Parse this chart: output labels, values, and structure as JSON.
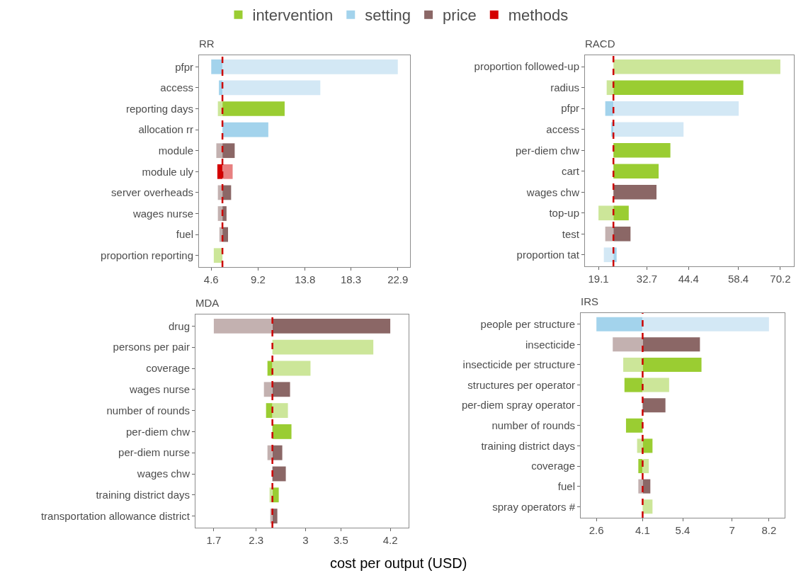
{
  "chart_data": [
    {
      "type": "bar",
      "orientation": "horizontal",
      "title": "RR",
      "legend": "top",
      "categories": [
        "pfpr",
        "access",
        "reporting days",
        "allocation rr",
        "module",
        "module uly",
        "server overheads",
        "wages nurse",
        "fuel",
        "proportion reporting"
      ],
      "series": [
        {
          "name": "intervention",
          "color": "#9acd32",
          "values": [
            null,
            null,
            6.1,
            null,
            null,
            null,
            null,
            null,
            null,
            null
          ],
          "base": [
            null,
            null,
            5.7,
            null,
            null,
            null,
            null,
            null,
            null,
            null
          ]
        },
        {
          "color": "#cce699",
          "values": [
            null,
            null,
            -0.45,
            null,
            null,
            null,
            null,
            null,
            null,
            -0.85
          ],
          "base": [
            null,
            null,
            5.7,
            null,
            null,
            null,
            null,
            null,
            null,
            5.7
          ]
        },
        {
          "name": "setting",
          "color": "#a3d3ec",
          "values": [
            -1.1,
            -0.35,
            null,
            4.5,
            null,
            null,
            null,
            null,
            null,
            null
          ],
          "base": [
            5.7,
            5.7,
            null,
            5.7,
            null,
            null,
            null,
            null,
            null,
            null
          ]
        },
        {
          "color": "#d3e8f5",
          "values": [
            17.2,
            9.6,
            null,
            null,
            null,
            null,
            null,
            null,
            null,
            null
          ],
          "base": [
            5.7,
            5.7,
            null,
            null,
            null,
            null,
            null,
            null,
            null,
            null
          ]
        },
        {
          "name": "price",
          "color": "#8b6766",
          "values": [
            null,
            null,
            null,
            null,
            1.2,
            null,
            0.85,
            0.4,
            0.55,
            null
          ],
          "base": [
            null,
            null,
            null,
            null,
            5.7,
            null,
            5.7,
            5.7,
            5.7,
            null
          ]
        },
        {
          "color": "#c3b1b0",
          "values": [
            null,
            null,
            null,
            null,
            -0.6,
            null,
            -0.45,
            -0.45,
            -0.3,
            null
          ],
          "base": [
            null,
            null,
            null,
            null,
            5.7,
            null,
            5.7,
            5.7,
            5.7,
            null
          ]
        },
        {
          "name": "methods",
          "color": "#d40000",
          "values": [
            null,
            null,
            null,
            null,
            null,
            -0.5,
            null,
            null,
            null,
            null
          ],
          "base": [
            null,
            null,
            null,
            null,
            null,
            5.7,
            null,
            null,
            null,
            null
          ]
        },
        {
          "color": "#e88080",
          "values": [
            null,
            null,
            null,
            null,
            null,
            1.0,
            null,
            null,
            null,
            null
          ],
          "base": [
            null,
            null,
            null,
            null,
            null,
            5.7,
            null,
            null,
            null,
            null
          ]
        }
      ],
      "xlim": [
        3.4,
        24.1
      ],
      "xticks": [
        4.6,
        9.2,
        13.8,
        18.3,
        22.9
      ],
      "ref_lines": [
        {
          "axis": "x",
          "value": 5.7,
          "color": "#cc0000",
          "line_style": "dashed"
        }
      ]
    },
    {
      "type": "bar",
      "orientation": "horizontal",
      "title": "RACD",
      "categories": [
        "proportion followed-up",
        "radius",
        "pfpr",
        "access",
        "per-diem chw",
        "cart",
        "wages chw",
        "top-up",
        "test",
        "proportion tat"
      ],
      "series": [
        {
          "name": "intervention",
          "color": "#9acd32",
          "values": [
            null,
            36.5,
            null,
            null,
            16.0,
            12.7,
            null,
            4.3,
            null,
            null
          ],
          "base": [
            null,
            23.3,
            null,
            null,
            23.3,
            23.3,
            null,
            23.3,
            null,
            null
          ]
        },
        {
          "color": "#cce699",
          "values": [
            46.9,
            -1.9,
            null,
            null,
            null,
            null,
            null,
            -4.2,
            null,
            null
          ],
          "base": [
            23.3,
            23.3,
            null,
            null,
            null,
            null,
            null,
            23.3,
            null,
            null
          ]
        },
        {
          "name": "setting",
          "color": "#a3d3ec",
          "values": [
            null,
            null,
            -2.3,
            -0.6,
            null,
            null,
            null,
            null,
            null,
            0.9
          ],
          "base": [
            null,
            null,
            23.3,
            23.3,
            null,
            null,
            null,
            null,
            null,
            23.3
          ]
        },
        {
          "color": "#d3e8f5",
          "values": [
            null,
            null,
            35.2,
            19.7,
            null,
            null,
            null,
            null,
            null,
            -2.7
          ],
          "base": [
            null,
            null,
            23.3,
            23.3,
            null,
            null,
            null,
            null,
            null,
            23.3
          ]
        },
        {
          "name": "price",
          "color": "#8b6766",
          "values": [
            null,
            null,
            null,
            null,
            null,
            null,
            12.1,
            null,
            4.8,
            null
          ],
          "base": [
            null,
            null,
            null,
            null,
            null,
            null,
            23.3,
            null,
            23.3,
            null
          ]
        },
        {
          "color": "#c3b1b0",
          "values": [
            null,
            null,
            null,
            null,
            null,
            null,
            null,
            null,
            -2.3,
            null
          ],
          "base": [
            null,
            null,
            null,
            null,
            null,
            null,
            null,
            null,
            23.3,
            null
          ]
        }
      ],
      "xlim": [
        15.3,
        74.0
      ],
      "xticks": [
        19.1,
        32.7,
        44.4,
        58.4,
        70.2
      ],
      "ref_lines": [
        {
          "axis": "x",
          "value": 23.3,
          "color": "#cc0000",
          "line_style": "dashed"
        }
      ]
    },
    {
      "type": "bar",
      "orientation": "horizontal",
      "title": "MDA",
      "xlabel": "cost per output (USD)",
      "categories": [
        "drug",
        "persons per pair",
        "coverage",
        "wages nurse",
        "number of rounds",
        "per-diem chw",
        "per-diem nurse",
        "wages chw",
        "training district days",
        "transportation allowance district"
      ],
      "series": [
        {
          "name": "price",
          "color": "#8b6766",
          "values": [
            1.67,
            null,
            null,
            0.25,
            null,
            null,
            0.14,
            0.19,
            null,
            0.07
          ],
          "base": [
            2.53,
            null,
            null,
            2.53,
            null,
            null,
            2.53,
            2.53,
            null,
            2.53
          ]
        },
        {
          "color": "#c3b1b0",
          "values": [
            -0.83,
            null,
            null,
            -0.12,
            null,
            null,
            -0.07,
            null,
            null,
            -0.03
          ],
          "base": [
            2.53,
            null,
            null,
            2.53,
            null,
            null,
            2.53,
            null,
            null,
            2.53
          ]
        },
        {
          "name": "intervention",
          "color": "#9acd32",
          "values": [
            null,
            null,
            -0.07,
            null,
            -0.09,
            0.27,
            null,
            null,
            0.09,
            null
          ],
          "base": [
            null,
            null,
            2.53,
            null,
            2.53,
            2.53,
            null,
            null,
            2.53,
            null
          ]
        },
        {
          "color": "#cce699",
          "values": [
            null,
            1.43,
            0.54,
            null,
            0.22,
            null,
            null,
            null,
            -0.04,
            null
          ],
          "base": [
            null,
            2.53,
            2.53,
            null,
            2.53,
            null,
            null,
            null,
            2.53,
            null
          ]
        }
      ],
      "xlim": [
        1.44,
        4.46
      ],
      "xticks": [
        1.7,
        2.3,
        3,
        3.5,
        4.2
      ],
      "ref_lines": [
        {
          "axis": "x",
          "value": 2.53,
          "color": "#cc0000",
          "line_style": "dashed"
        }
      ]
    },
    {
      "type": "bar",
      "orientation": "horizontal",
      "title": "IRS",
      "categories": [
        "people per structure",
        "insecticide",
        "insecticide per structure",
        "structures per operator",
        "per-diem spray operator",
        "number of rounds",
        "training district days",
        "coverage",
        "fuel",
        "spray operators #"
      ],
      "series": [
        {
          "name": "setting",
          "color": "#a3d3ec",
          "values": [
            -1.5,
            null,
            null,
            null,
            null,
            null,
            null,
            null,
            null,
            null
          ],
          "base": [
            4.1,
            null,
            null,
            null,
            null,
            null,
            null,
            null,
            null,
            null
          ]
        },
        {
          "color": "#d3e8f5",
          "values": [
            4.1,
            null,
            null,
            null,
            null,
            null,
            null,
            null,
            null,
            null
          ],
          "base": [
            4.1,
            null,
            null,
            null,
            null,
            null,
            null,
            null,
            null,
            null
          ]
        },
        {
          "name": "price",
          "color": "#8b6766",
          "values": [
            null,
            1.86,
            null,
            null,
            0.74,
            null,
            null,
            null,
            0.25,
            null
          ],
          "base": [
            null,
            4.1,
            null,
            null,
            4.1,
            null,
            null,
            null,
            4.1,
            null
          ]
        },
        {
          "color": "#c3b1b0",
          "values": [
            null,
            -0.97,
            null,
            null,
            null,
            null,
            null,
            null,
            -0.14,
            null
          ],
          "base": [
            null,
            4.1,
            null,
            null,
            null,
            null,
            null,
            null,
            4.1,
            null
          ]
        },
        {
          "name": "intervention",
          "color": "#9acd32",
          "values": [
            null,
            null,
            1.91,
            -0.59,
            null,
            -0.54,
            0.32,
            -0.14,
            null,
            null
          ],
          "base": [
            null,
            null,
            4.1,
            4.1,
            null,
            4.1,
            4.1,
            4.1,
            null,
            null
          ]
        },
        {
          "color": "#cce699",
          "values": [
            null,
            null,
            -0.63,
            0.86,
            null,
            null,
            -0.18,
            0.2,
            null,
            0.32
          ],
          "base": [
            null,
            null,
            4.1,
            4.1,
            null,
            null,
            4.1,
            4.1,
            null,
            4.1
          ]
        }
      ],
      "xlim": [
        2.09,
        8.71
      ],
      "xticks": [
        2.6,
        4.1,
        5.4,
        7,
        8.2
      ],
      "ref_lines": [
        {
          "axis": "x",
          "value": 4.1,
          "color": "#cc0000",
          "line_style": "dashed"
        }
      ]
    }
  ]
}
